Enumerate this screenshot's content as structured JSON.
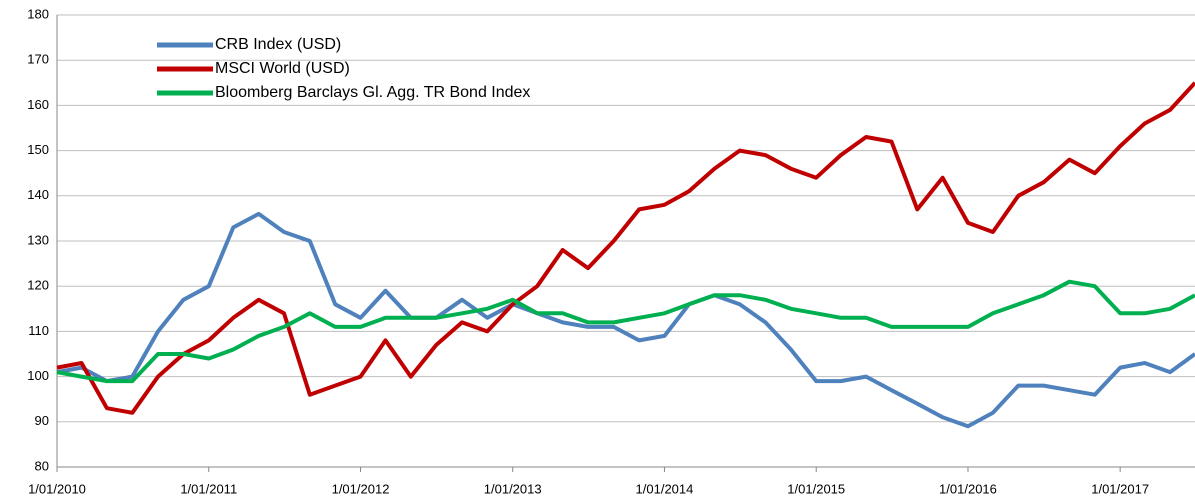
{
  "chart_data": {
    "type": "line",
    "x": [
      "2010-01-01",
      "2010-03-01",
      "2010-05-01",
      "2010-07-01",
      "2010-09-01",
      "2010-11-01",
      "2011-01-01",
      "2011-03-01",
      "2011-05-01",
      "2011-07-01",
      "2011-09-01",
      "2011-11-01",
      "2012-01-01",
      "2012-03-01",
      "2012-05-01",
      "2012-07-01",
      "2012-09-01",
      "2012-11-01",
      "2013-01-01",
      "2013-03-01",
      "2013-05-01",
      "2013-07-01",
      "2013-09-01",
      "2013-11-01",
      "2014-01-01",
      "2014-03-01",
      "2014-05-01",
      "2014-07-01",
      "2014-09-01",
      "2014-11-01",
      "2015-01-01",
      "2015-03-01",
      "2015-05-01",
      "2015-07-01",
      "2015-09-01",
      "2015-11-01",
      "2016-01-01",
      "2016-03-01",
      "2016-05-01",
      "2016-07-01",
      "2016-09-01",
      "2016-11-01",
      "2017-01-01",
      "2017-03-01",
      "2017-05-01",
      "2017-06-30"
    ],
    "series": [
      {
        "name": "CRB Index (USD)",
        "color": "#4f81bd",
        "values": [
          101,
          102,
          99,
          100,
          110,
          117,
          120,
          133,
          136,
          132,
          130,
          116,
          113,
          119,
          113,
          113,
          117,
          113,
          116,
          114,
          112,
          111,
          111,
          108,
          109,
          116,
          118,
          116,
          112,
          106,
          99,
          99,
          100,
          97,
          94,
          91,
          89,
          92,
          98,
          98,
          97,
          96,
          102,
          103,
          101,
          105
        ]
      },
      {
        "name": "MSCI World (USD)",
        "color": "#c00000",
        "values": [
          102,
          103,
          93,
          92,
          100,
          105,
          108,
          113,
          117,
          114,
          96,
          98,
          100,
          108,
          100,
          107,
          112,
          110,
          116,
          120,
          128,
          124,
          130,
          137,
          138,
          141,
          146,
          150,
          149,
          146,
          144,
          149,
          153,
          152,
          137,
          144,
          134,
          132,
          140,
          143,
          148,
          145,
          151,
          156,
          159,
          165
        ]
      },
      {
        "name": "Bloomberg Barclays Gl. Agg. TR Bond Index",
        "color": "#00b050",
        "values": [
          101,
          100,
          99,
          99,
          105,
          105,
          104,
          106,
          109,
          111,
          114,
          111,
          111,
          113,
          113,
          113,
          114,
          115,
          117,
          114,
          114,
          112,
          112,
          113,
          114,
          116,
          118,
          118,
          117,
          115,
          114,
          113,
          113,
          111,
          111,
          111,
          111,
          114,
          116,
          118,
          121,
          120,
          114,
          114,
          115,
          118
        ]
      }
    ],
    "xlim": [
      "2010-01-01",
      "2017-06-30"
    ],
    "xticks": [
      {
        "value": "2010-01-01",
        "label": "1/01/2010"
      },
      {
        "value": "2011-01-01",
        "label": "1/01/2011"
      },
      {
        "value": "2012-01-01",
        "label": "1/01/2012"
      },
      {
        "value": "2013-01-01",
        "label": "1/01/2013"
      },
      {
        "value": "2014-01-01",
        "label": "1/01/2014"
      },
      {
        "value": "2015-01-01",
        "label": "1/01/2015"
      },
      {
        "value": "2016-01-01",
        "label": "1/01/2016"
      },
      {
        "value": "2017-01-01",
        "label": "1/01/2017"
      }
    ],
    "ylim": [
      80,
      180
    ],
    "yticks": [
      80,
      90,
      100,
      110,
      120,
      130,
      140,
      150,
      160,
      170,
      180
    ],
    "grid": true
  }
}
